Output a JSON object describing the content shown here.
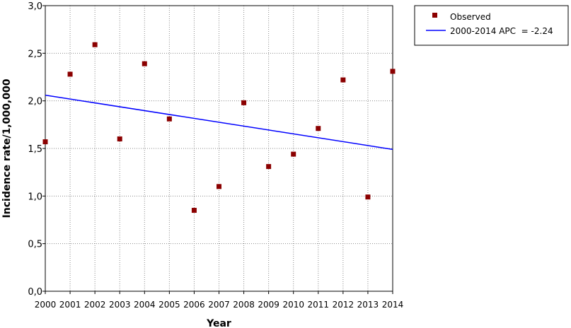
{
  "chart_data": {
    "type": "scatter",
    "xlabel": "Year",
    "ylabel": "Incidence rate/1,000,000",
    "xlim": [
      2000,
      2014
    ],
    "ylim": [
      0.0,
      3.0
    ],
    "x_ticks": [
      "2000",
      "2001",
      "2002",
      "2003",
      "2004",
      "2005",
      "2006",
      "2007",
      "2008",
      "2009",
      "2010",
      "2011",
      "2012",
      "2013",
      "2014"
    ],
    "y_ticks": [
      "0,0",
      "0,5",
      "1,0",
      "1,5",
      "2,0",
      "2,5",
      "3,0"
    ],
    "grid": true,
    "legend_position": "outside-top-right",
    "series": [
      {
        "name": "Observed",
        "kind": "points",
        "color": "#8b0000",
        "x": [
          2000,
          2001,
          2002,
          2003,
          2004,
          2005,
          2006,
          2007,
          2008,
          2009,
          2010,
          2011,
          2012,
          2013,
          2014
        ],
        "y": [
          1.57,
          2.28,
          2.59,
          1.6,
          2.39,
          1.81,
          0.85,
          1.1,
          1.98,
          1.31,
          1.44,
          1.71,
          2.22,
          0.99,
          2.31
        ]
      },
      {
        "name": "2000-2014 APC  = -2.24",
        "kind": "line",
        "color": "#0000ff",
        "x": [
          2000,
          2014
        ],
        "y": [
          2.06,
          1.49
        ]
      }
    ]
  }
}
